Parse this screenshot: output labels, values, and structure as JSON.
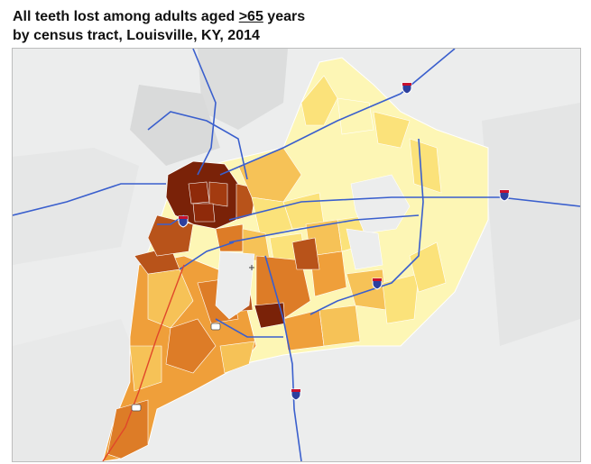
{
  "title": {
    "line1_prefix": "All teeth lost among adults aged ",
    "line1_age": ">65",
    "line1_suffix": " years",
    "line2": "by census tract, Louisville, KY, 2014"
  },
  "colors": {
    "background": "#eceded",
    "lightgray": "#dcdddd",
    "highway": "#3a5fcd",
    "river_road": "#e0472a",
    "scale": [
      "#fdf6b5",
      "#fbe27a",
      "#f6c257",
      "#ef9f3a",
      "#dd7c27",
      "#b8531a",
      "#7a2208"
    ]
  },
  "legend_note": "Darker shades indicate higher prevalence; data categories are not printed in the screenshot"
}
